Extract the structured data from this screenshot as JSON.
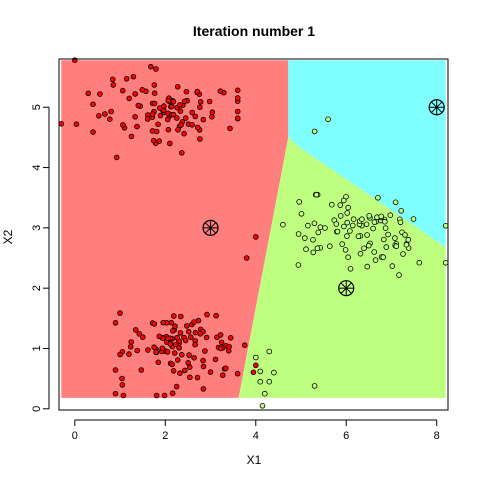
{
  "chart_data": {
    "type": "scatter",
    "title": "Iteration number 1",
    "xlabel": "X1",
    "ylabel": "X2",
    "xlim": [
      -0.35,
      8.25
    ],
    "ylim": [
      -0.02,
      5.8
    ],
    "x_ticks": [
      0,
      2,
      4,
      6,
      8
    ],
    "y_ticks": [
      0,
      1,
      2,
      3,
      4,
      5
    ],
    "grid": false,
    "legend": "none",
    "colors": {
      "region_1": "#FF7F7F",
      "region_2": "#BFFF7F",
      "region_3": "#7FFFFF",
      "points_cluster_1": "#FF0000",
      "points_cluster_2": "#BFFF7F",
      "centers": "#000000"
    },
    "regions": [
      {
        "cluster": 1,
        "color": "#FF7F7F",
        "polygon": [
          [
            -0.3,
            0.18
          ],
          [
            3.62,
            0.18
          ],
          [
            4.72,
            4.5
          ],
          [
            4.72,
            5.78
          ],
          [
            -0.3,
            5.78
          ]
        ]
      },
      {
        "cluster": 2,
        "color": "#BFFF7F",
        "polygon": [
          [
            3.62,
            0.18
          ],
          [
            8.2,
            0.18
          ],
          [
            8.2,
            2.68
          ],
          [
            5.0,
            4.32
          ],
          [
            4.72,
            4.5
          ]
        ]
      },
      {
        "cluster": 3,
        "color": "#7FFFFF",
        "polygon": [
          [
            4.72,
            4.5
          ],
          [
            5.0,
            4.32
          ],
          [
            8.2,
            2.68
          ],
          [
            8.2,
            5.78
          ],
          [
            4.72,
            5.78
          ]
        ]
      }
    ],
    "centers": [
      {
        "cluster": 1,
        "x": 3.0,
        "y": 3.0
      },
      {
        "cluster": 2,
        "x": 6.0,
        "y": 2.0
      },
      {
        "cluster": 3,
        "x": 8.0,
        "y": 5.0
      }
    ],
    "clusters": [
      {
        "cluster": 1,
        "groups": [
          {
            "n": 105,
            "mean": [
              2.0,
              5.0
            ],
            "sd": [
              0.9,
              0.3
            ],
            "xrange": [
              -0.3,
              3.6
            ],
            "yrange": [
              4.05,
              5.78
            ]
          },
          {
            "n": 110,
            "mean": [
              2.4,
              1.0
            ],
            "sd": [
              0.7,
              0.32
            ],
            "xrange": [
              0.9,
              4.0
            ],
            "yrange": [
              0.22,
              1.85
            ]
          },
          {
            "n": 6,
            "points": [
              [
                0.0,
                5.78
              ],
              [
                0.9,
                0.25
              ],
              [
                1.0,
                0.9
              ],
              [
                3.8,
                2.5
              ],
              [
                4.0,
                2.85
              ],
              [
                2.1,
                4.4
              ]
            ]
          }
        ]
      },
      {
        "cluster": 2,
        "groups": [
          {
            "n": 95,
            "mean": [
              6.2,
              2.9
            ],
            "sd": [
              0.75,
              0.32
            ],
            "xrange": [
              4.6,
              8.2
            ],
            "yrange": [
              2.2,
              3.55
            ]
          },
          {
            "n": 12,
            "points": [
              [
                4.1,
                0.45
              ],
              [
                4.3,
                0.45
              ],
              [
                4.2,
                0.25
              ],
              [
                4.1,
                0.62
              ],
              [
                4.3,
                0.95
              ],
              [
                4.4,
                0.6
              ],
              [
                4.0,
                0.85
              ],
              [
                5.3,
                0.38
              ],
              [
                4.15,
                0.05
              ],
              [
                5.6,
                4.8
              ],
              [
                5.3,
                4.6
              ],
              [
                8.2,
                2.42
              ]
            ]
          }
        ]
      }
    ]
  }
}
